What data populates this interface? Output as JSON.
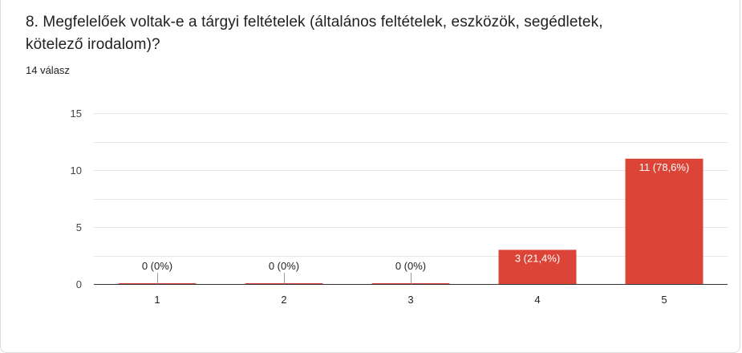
{
  "question": {
    "title": "8. Megfelelőek voltak-e a tárgyi feltételek (általános feltételek, eszközök, segédletek, kötelező irodalom)?",
    "response_count": "14 válasz"
  },
  "colors": {
    "bar": "#db4437",
    "axis": "#333333",
    "grid": "#e6e6e6",
    "label_outside": "#222222",
    "label_inside": "#ffffff"
  },
  "chart_data": {
    "type": "bar",
    "categories": [
      "1",
      "2",
      "3",
      "4",
      "5"
    ],
    "values": [
      0,
      0,
      0,
      3,
      11
    ],
    "data_labels": [
      "0 (0%)",
      "0 (0%)",
      "0 (0%)",
      "3 (21,4%)",
      "11 (78,6%)"
    ],
    "yticks": [
      0,
      5,
      10,
      15
    ],
    "ylim": [
      0,
      15
    ],
    "grid": true,
    "title": "",
    "xlabel": "",
    "ylabel": ""
  }
}
